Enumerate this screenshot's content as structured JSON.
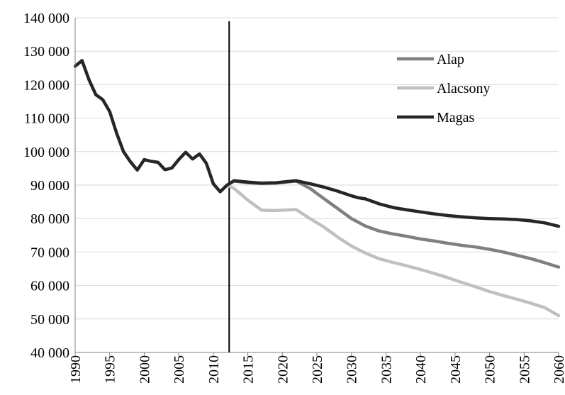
{
  "chart_data": {
    "type": "line",
    "title": "",
    "xlabel": "",
    "ylabel": "",
    "xlim": [
      1990,
      2060
    ],
    "ylim": [
      40000,
      140000
    ],
    "y_ticks": [
      {
        "value": 40000,
        "label": "40 000"
      },
      {
        "value": 50000,
        "label": "50 000"
      },
      {
        "value": 60000,
        "label": "60 000"
      },
      {
        "value": 70000,
        "label": "70 000"
      },
      {
        "value": 80000,
        "label": "80 000"
      },
      {
        "value": 90000,
        "label": "90 000"
      },
      {
        "value": 100000,
        "label": "100 000"
      },
      {
        "value": 110000,
        "label": "110 000"
      },
      {
        "value": 120000,
        "label": "120 000"
      },
      {
        "value": 130000,
        "label": "130 000"
      },
      {
        "value": 140000,
        "label": "140 000"
      }
    ],
    "x_ticks": [
      {
        "value": 1990,
        "label": "1990"
      },
      {
        "value": 1995,
        "label": "1995"
      },
      {
        "value": 2000,
        "label": "2000"
      },
      {
        "value": 2005,
        "label": "2005"
      },
      {
        "value": 2010,
        "label": "2010"
      },
      {
        "value": 2015,
        "label": "2015"
      },
      {
        "value": 2020,
        "label": "2020"
      },
      {
        "value": 2025,
        "label": "2025"
      },
      {
        "value": 2030,
        "label": "2030"
      },
      {
        "value": 2035,
        "label": "2035"
      },
      {
        "value": 2040,
        "label": "2040"
      },
      {
        "value": 2045,
        "label": "2045"
      },
      {
        "value": 2050,
        "label": "2050"
      },
      {
        "value": 2055,
        "label": "2055"
      },
      {
        "value": 2060,
        "label": "2060"
      }
    ],
    "grid": "horizontal",
    "vertical_marker_x": 2012.3,
    "legend_position": "top-right",
    "series": [
      {
        "name": "Alap",
        "color": "#808080",
        "x": [
          2012,
          2013,
          2015,
          2017,
          2019,
          2021,
          2022,
          2024,
          2026,
          2028,
          2030,
          2032,
          2034,
          2036,
          2038,
          2040,
          2042,
          2044,
          2046,
          2048,
          2050,
          2052,
          2054,
          2056,
          2058,
          2060
        ],
        "values": [
          90000,
          91200,
          90700,
          90500,
          90600,
          91000,
          91200,
          89000,
          86000,
          83000,
          80000,
          77800,
          76300,
          75400,
          74700,
          73900,
          73300,
          72600,
          72000,
          71500,
          70800,
          70000,
          69000,
          68000,
          66800,
          65500
        ]
      },
      {
        "name": "Alacsony",
        "color": "#c0c0c0",
        "x": [
          2012,
          2013,
          2015,
          2017,
          2019,
          2021,
          2022,
          2024,
          2026,
          2028,
          2030,
          2032,
          2034,
          2036,
          2038,
          2040,
          2042,
          2044,
          2046,
          2048,
          2050,
          2052,
          2054,
          2056,
          2058,
          2060
        ],
        "values": [
          90000,
          89000,
          85500,
          82500,
          82400,
          82600,
          82700,
          80000,
          77500,
          74500,
          71800,
          69700,
          68000,
          66900,
          65900,
          64800,
          63600,
          62300,
          60900,
          59600,
          58200,
          57000,
          55900,
          54700,
          53400,
          51000
        ]
      },
      {
        "name": "Magas",
        "color": "#262626",
        "x": [
          1990,
          1991,
          1992,
          1993,
          1994,
          1995,
          1996,
          1997,
          1998,
          1999,
          2000,
          2001,
          2002,
          2003,
          2004,
          2005,
          2006,
          2007,
          2008,
          2009,
          2010,
          2011,
          2012,
          2013,
          2015,
          2017,
          2019,
          2021,
          2022,
          2024,
          2026,
          2028,
          2030,
          2031,
          2032,
          2034,
          2036,
          2038,
          2040,
          2042,
          2044,
          2046,
          2048,
          2050,
          2052,
          2054,
          2056,
          2058,
          2060
        ],
        "values": [
          125500,
          127200,
          121500,
          117000,
          115500,
          112000,
          105500,
          100000,
          97000,
          94500,
          97600,
          97100,
          96800,
          94600,
          95100,
          97600,
          99800,
          97800,
          99300,
          96500,
          90400,
          88000,
          90000,
          91300,
          90900,
          90600,
          90700,
          91100,
          91300,
          90400,
          89400,
          88200,
          86800,
          86200,
          85900,
          84400,
          83300,
          82600,
          82000,
          81400,
          80900,
          80500,
          80200,
          80000,
          79900,
          79700,
          79300,
          78700,
          77700
        ]
      }
    ]
  }
}
